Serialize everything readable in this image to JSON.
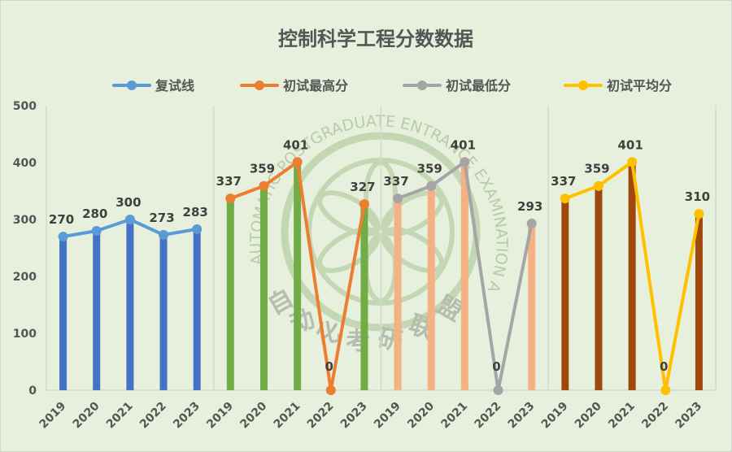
{
  "chart_data": {
    "type": "line",
    "title": "控制科学工程分数数据",
    "xlabel": "",
    "ylabel": "",
    "ylim": [
      0,
      500
    ],
    "yticks": [
      0,
      100,
      200,
      300,
      400,
      500
    ],
    "grid": false,
    "legend_position": "top",
    "categories": [
      "2019",
      "2020",
      "2021",
      "2022",
      "2023"
    ],
    "series": [
      {
        "name": "复试线",
        "color": "#5b9bd5",
        "bar_color": "#4472c4",
        "values": [
          270,
          280,
          300,
          273,
          283
        ]
      },
      {
        "name": "初试最高分",
        "color": "#ed7d31",
        "bar_color": "#70ad47",
        "values": [
          337,
          359,
          401,
          0,
          327
        ]
      },
      {
        "name": "初试最低分",
        "color": "#a5a5a5",
        "bar_color": "#f4b183",
        "values": [
          337,
          359,
          401,
          0,
          293
        ]
      },
      {
        "name": "初试平均分",
        "color": "#ffc000",
        "bar_color": "#9e480e",
        "values": [
          337,
          359,
          401,
          0,
          310
        ]
      }
    ]
  },
  "watermark": {
    "text_en": "AUTOMATIC POSTGRADUATE ENTRANCE EXAMINATION ALLIANCE",
    "text_cn": "自动化考研联盟"
  }
}
